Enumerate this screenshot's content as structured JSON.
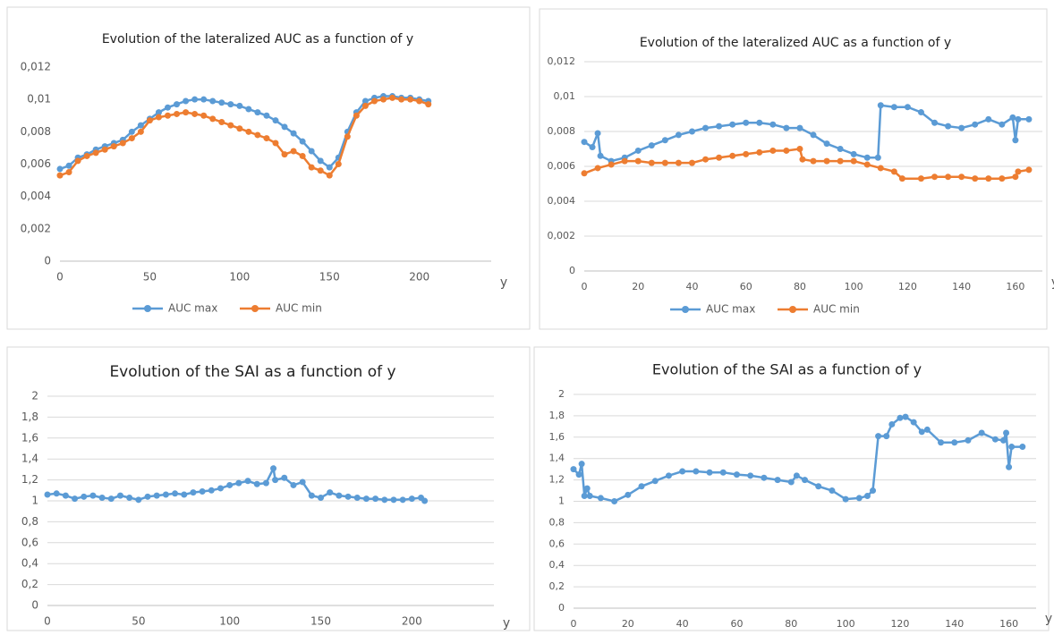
{
  "chart_data": [
    {
      "type": "line",
      "title": "Evolution of the lateralized AUC as a function of y",
      "x_label": "y",
      "grid": false,
      "legend": "bottom",
      "x": [
        0,
        5,
        10,
        15,
        20,
        25,
        30,
        35,
        40,
        45,
        50,
        55,
        60,
        65,
        70,
        75,
        80,
        85,
        90,
        95,
        100,
        105,
        110,
        115,
        120,
        125,
        130,
        135,
        140,
        145,
        150,
        155,
        160,
        165,
        170,
        175,
        180,
        185,
        190,
        195,
        200,
        205
      ],
      "series": [
        {
          "name": "AUC max",
          "color": "#5b9bd5",
          "values": [
            0.0057,
            0.0059,
            0.0064,
            0.0066,
            0.0069,
            0.0071,
            0.0073,
            0.0075,
            0.008,
            0.0084,
            0.0088,
            0.0092,
            0.0095,
            0.0097,
            0.0099,
            0.01,
            0.01,
            0.0099,
            0.0098,
            0.0097,
            0.0096,
            0.0094,
            0.0092,
            0.009,
            0.0087,
            0.0083,
            0.0079,
            0.0074,
            0.0068,
            0.0062,
            0.0058,
            0.0064,
            0.008,
            0.0092,
            0.0099,
            0.0101,
            0.0102,
            0.0102,
            0.0101,
            0.0101,
            0.01,
            0.0099
          ]
        },
        {
          "name": "AUC min",
          "color": "#ed7d31",
          "values": [
            0.0053,
            0.0055,
            0.0062,
            0.0065,
            0.0067,
            0.0069,
            0.0071,
            0.0073,
            0.0076,
            0.008,
            0.0087,
            0.0089,
            0.009,
            0.0091,
            0.0092,
            0.0091,
            0.009,
            0.0088,
            0.0086,
            0.0084,
            0.0082,
            0.008,
            0.0078,
            0.0076,
            0.0073,
            0.0066,
            0.0068,
            0.0065,
            0.0058,
            0.0056,
            0.0053,
            0.006,
            0.0077,
            0.009,
            0.0096,
            0.0099,
            0.01,
            0.0101,
            0.01,
            0.01,
            0.0099,
            0.0097
          ]
        }
      ],
      "xlim": [
        0,
        240
      ],
      "xticks": [
        0,
        50,
        100,
        150,
        200
      ],
      "ylim": [
        0,
        0.012
      ],
      "yticks": [
        0,
        {
          "value": 0.002,
          "label": "0,002"
        },
        {
          "value": 0.004,
          "label": "0,004"
        },
        {
          "value": 0.006,
          "label": "0,006"
        },
        {
          "value": 0.008,
          "label": "0,008"
        },
        {
          "value": 0.01,
          "label": "0,01"
        },
        {
          "value": 0.012,
          "label": "0,012"
        }
      ]
    },
    {
      "type": "line",
      "title": "Evolution of the lateralized AUC as a function of y",
      "x_label": "y",
      "grid": true,
      "legend": "bottom",
      "series": [
        {
          "name": "AUC max",
          "color": "#5b9bd5",
          "x": [
            0,
            3,
            5,
            6,
            10,
            15,
            20,
            25,
            30,
            35,
            40,
            45,
            50,
            55,
            60,
            65,
            70,
            75,
            80,
            85,
            90,
            95,
            100,
            105,
            109,
            110,
            115,
            120,
            125,
            130,
            135,
            140,
            145,
            150,
            155,
            159,
            160,
            161,
            165
          ],
          "values": [
            0.0074,
            0.0071,
            0.0079,
            0.0066,
            0.0063,
            0.0065,
            0.0069,
            0.0072,
            0.0075,
            0.0078,
            0.008,
            0.0082,
            0.0083,
            0.0084,
            0.0085,
            0.0085,
            0.0084,
            0.0082,
            0.0082,
            0.0078,
            0.0073,
            0.007,
            0.0067,
            0.0065,
            0.0065,
            0.0095,
            0.0094,
            0.0094,
            0.0091,
            0.0085,
            0.0083,
            0.0082,
            0.0084,
            0.0087,
            0.0084,
            0.0088,
            0.0075,
            0.0087,
            0.0087
          ]
        },
        {
          "name": "AUC min",
          "color": "#ed7d31",
          "x": [
            0,
            5,
            10,
            15,
            20,
            25,
            30,
            35,
            40,
            45,
            50,
            55,
            60,
            65,
            70,
            75,
            80,
            81,
            85,
            90,
            95,
            100,
            105,
            110,
            115,
            118,
            125,
            130,
            135,
            140,
            145,
            150,
            155,
            160,
            161,
            165
          ],
          "values": [
            0.0056,
            0.0059,
            0.0061,
            0.0063,
            0.0063,
            0.0062,
            0.0062,
            0.0062,
            0.0062,
            0.0064,
            0.0065,
            0.0066,
            0.0067,
            0.0068,
            0.0069,
            0.0069,
            0.007,
            0.0064,
            0.0063,
            0.0063,
            0.0063,
            0.0063,
            0.0061,
            0.0059,
            0.0057,
            0.0053,
            0.0053,
            0.0054,
            0.0054,
            0.0054,
            0.0053,
            0.0053,
            0.0053,
            0.0054,
            0.0057,
            0.0058
          ]
        }
      ],
      "xlim": [
        0,
        170
      ],
      "xticks": [
        0,
        20,
        40,
        60,
        80,
        100,
        120,
        140,
        160
      ],
      "ylim": [
        0,
        0.012
      ],
      "yticks": [
        0,
        {
          "value": 0.002,
          "label": "0,002"
        },
        {
          "value": 0.004,
          "label": "0,004"
        },
        {
          "value": 0.006,
          "label": "0,006"
        },
        {
          "value": 0.008,
          "label": "0,008"
        },
        {
          "value": 0.01,
          "label": "0,01"
        },
        {
          "value": 0.012,
          "label": "0,012"
        }
      ]
    },
    {
      "type": "line",
      "title": "Evolution of the SAI as a function of y",
      "x_label": "y",
      "grid": true,
      "color": "#5b9bd5",
      "x": [
        0,
        5,
        10,
        15,
        20,
        25,
        30,
        35,
        40,
        45,
        50,
        55,
        60,
        65,
        70,
        75,
        80,
        85,
        90,
        95,
        100,
        105,
        110,
        115,
        120,
        124,
        125,
        130,
        135,
        140,
        145,
        150,
        155,
        160,
        165,
        170,
        175,
        180,
        185,
        190,
        195,
        200,
        205,
        207
      ],
      "values": [
        1.06,
        1.07,
        1.05,
        1.02,
        1.04,
        1.05,
        1.03,
        1.02,
        1.05,
        1.03,
        1.01,
        1.04,
        1.05,
        1.06,
        1.07,
        1.06,
        1.08,
        1.09,
        1.1,
        1.12,
        1.15,
        1.17,
        1.19,
        1.16,
        1.17,
        1.31,
        1.2,
        1.22,
        1.15,
        1.18,
        1.05,
        1.03,
        1.08,
        1.05,
        1.04,
        1.03,
        1.02,
        1.02,
        1.01,
        1.01,
        1.01,
        1.02,
        1.03,
        1.0
      ],
      "xlim": [
        0,
        245
      ],
      "xticks": [
        0,
        50,
        100,
        150,
        200
      ],
      "ylim": [
        0,
        2
      ],
      "yticks": [
        0,
        {
          "value": 0.2,
          "label": "0,2"
        },
        {
          "value": 0.4,
          "label": "0,4"
        },
        {
          "value": 0.6,
          "label": "0,6"
        },
        {
          "value": 0.8,
          "label": "0,8"
        },
        1,
        {
          "value": 1.2,
          "label": "1,2"
        },
        {
          "value": 1.4,
          "label": "1,4"
        },
        {
          "value": 1.6,
          "label": "1,6"
        },
        {
          "value": 1.8,
          "label": "1,8"
        },
        2
      ]
    },
    {
      "type": "line",
      "title": "Evolution of the SAI as a function of y",
      "x_label": "y",
      "grid": true,
      "color": "#5b9bd5",
      "x": [
        0,
        2,
        3,
        4,
        5,
        6,
        10,
        15,
        20,
        25,
        30,
        35,
        40,
        45,
        50,
        55,
        60,
        65,
        70,
        75,
        80,
        82,
        85,
        90,
        95,
        100,
        105,
        108,
        110,
        112,
        115,
        117,
        120,
        122,
        125,
        128,
        130,
        135,
        140,
        145,
        150,
        155,
        158,
        159,
        160,
        161,
        165
      ],
      "values": [
        1.3,
        1.25,
        1.35,
        1.05,
        1.12,
        1.05,
        1.03,
        1.0,
        1.06,
        1.14,
        1.19,
        1.24,
        1.28,
        1.28,
        1.27,
        1.27,
        1.25,
        1.24,
        1.22,
        1.2,
        1.18,
        1.24,
        1.2,
        1.14,
        1.1,
        1.02,
        1.03,
        1.05,
        1.1,
        1.61,
        1.61,
        1.72,
        1.78,
        1.79,
        1.74,
        1.65,
        1.67,
        1.55,
        1.55,
        1.57,
        1.64,
        1.58,
        1.57,
        1.64,
        1.32,
        1.51,
        1.51
      ],
      "xlim": [
        0,
        170
      ],
      "xticks": [
        0,
        20,
        40,
        60,
        80,
        100,
        120,
        140,
        160
      ],
      "ylim": [
        0,
        2
      ],
      "yticks": [
        0,
        {
          "value": 0.2,
          "label": "0,2"
        },
        {
          "value": 0.4,
          "label": "0,4"
        },
        {
          "value": 0.6,
          "label": "0,6"
        },
        {
          "value": 0.8,
          "label": "0,8"
        },
        1,
        {
          "value": 1.2,
          "label": "1,2"
        },
        {
          "value": 1.4,
          "label": "1,4"
        },
        {
          "value": 1.6,
          "label": "1,6"
        },
        {
          "value": 1.8,
          "label": "1,8"
        },
        2
      ]
    }
  ]
}
